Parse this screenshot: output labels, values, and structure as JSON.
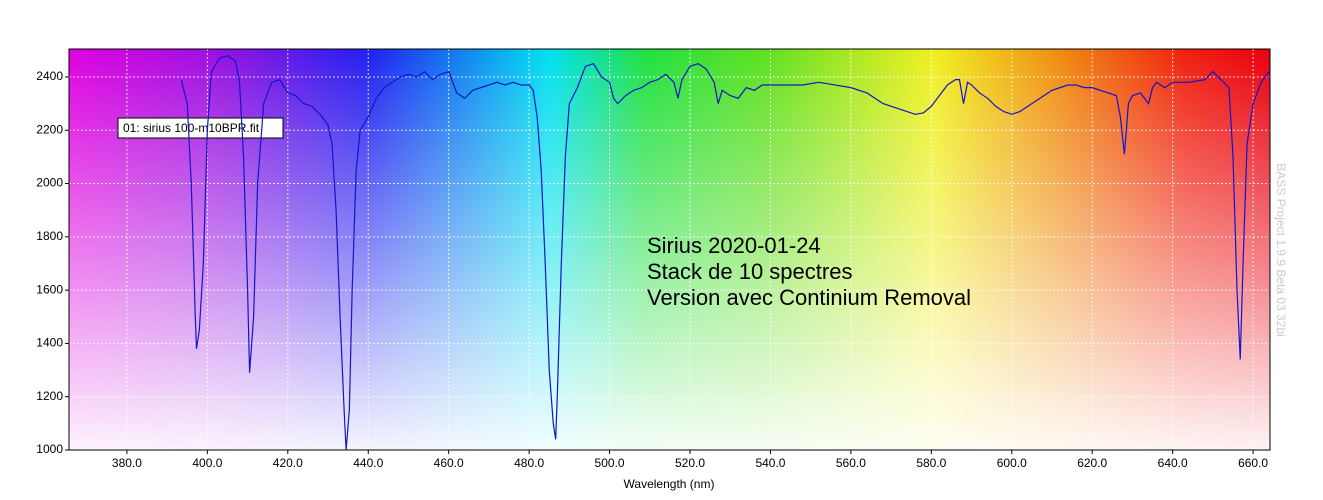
{
  "chart_data": {
    "type": "line",
    "xlabel": "Wavelength (nm)",
    "annotations": [
      "Sirius 2020-01-24",
      "Stack de 10 spectres",
      "Version avec Continium Removal"
    ],
    "watermark": "BASS Project 1.9.9 Beta 03 32bi",
    "grid": true,
    "xlim": [
      365.6,
      664.2
    ],
    "ylim": [
      1000,
      2505
    ],
    "xticks": [
      {
        "value": 380,
        "label": "380.0"
      },
      {
        "value": 400,
        "label": "400.0"
      },
      {
        "value": 420,
        "label": "420.0"
      },
      {
        "value": 440,
        "label": "440.0"
      },
      {
        "value": 460,
        "label": "460.0"
      },
      {
        "value": 480,
        "label": "480.0"
      },
      {
        "value": 500,
        "label": "500.0"
      },
      {
        "value": 520,
        "label": "520.0"
      },
      {
        "value": 540,
        "label": "540.0"
      },
      {
        "value": 560,
        "label": "560.0"
      },
      {
        "value": 580,
        "label": "580.0"
      },
      {
        "value": 600,
        "label": "600.0"
      },
      {
        "value": 620,
        "label": "620.0"
      },
      {
        "value": 640,
        "label": "640.0"
      },
      {
        "value": 660,
        "label": "660.0"
      }
    ],
    "yticks": [
      1000,
      1200,
      1400,
      1600,
      1800,
      2000,
      2200,
      2400
    ],
    "x": [
      393.5,
      395,
      396,
      397,
      397.3,
      398,
      399,
      400,
      401,
      403,
      405,
      407,
      408,
      409,
      410,
      410.5,
      411.5,
      412.5,
      414,
      416,
      418,
      420,
      422,
      424,
      426,
      428,
      430,
      431,
      432,
      433,
      434,
      434.5,
      435.3,
      436,
      437,
      438,
      440,
      442,
      444,
      446,
      448,
      450,
      452,
      454,
      456,
      458,
      460,
      462,
      464,
      466,
      468,
      470,
      472,
      474,
      476,
      478,
      480,
      481,
      482,
      483,
      484,
      485,
      486,
      486.6,
      487,
      488,
      489,
      490,
      492,
      494,
      496,
      498,
      500,
      501,
      502,
      504,
      506,
      508,
      510,
      512,
      514,
      516,
      517,
      518,
      520,
      522,
      524,
      526,
      527,
      528,
      530,
      532,
      534,
      536,
      538,
      540,
      544,
      548,
      552,
      556,
      560,
      564,
      568,
      572,
      576,
      578,
      580,
      582,
      584,
      586,
      587,
      588,
      589,
      590,
      592,
      594,
      596,
      598,
      600,
      602,
      604,
      606,
      608,
      610,
      612,
      614,
      616,
      618,
      620,
      622,
      624,
      626,
      627,
      628,
      629,
      630,
      632,
      634,
      635,
      636,
      638,
      640,
      644,
      648,
      650,
      652,
      654,
      655,
      656,
      656.8,
      657.5,
      658.5,
      660,
      662,
      664
    ],
    "series": [
      {
        "name": "01: sirius 100-m10BPR.fit",
        "color": "#1414c8",
        "values": [
          2390,
          2300,
          2000,
          1500,
          1380,
          1450,
          1700,
          2200,
          2420,
          2470,
          2480,
          2460,
          2380,
          2100,
          1600,
          1290,
          1500,
          2000,
          2300,
          2380,
          2390,
          2340,
          2330,
          2300,
          2290,
          2260,
          2220,
          2150,
          1900,
          1500,
          1150,
          1000,
          1150,
          1600,
          2050,
          2200,
          2250,
          2320,
          2360,
          2380,
          2400,
          2410,
          2400,
          2420,
          2390,
          2410,
          2420,
          2340,
          2320,
          2350,
          2360,
          2370,
          2380,
          2370,
          2380,
          2370,
          2370,
          2350,
          2250,
          2050,
          1700,
          1300,
          1100,
          1040,
          1200,
          1700,
          2100,
          2300,
          2360,
          2440,
          2450,
          2400,
          2380,
          2320,
          2300,
          2330,
          2350,
          2360,
          2380,
          2390,
          2410,
          2380,
          2320,
          2390,
          2440,
          2450,
          2430,
          2380,
          2300,
          2350,
          2330,
          2320,
          2360,
          2350,
          2370,
          2370,
          2370,
          2370,
          2380,
          2370,
          2360,
          2340,
          2300,
          2280,
          2260,
          2265,
          2290,
          2330,
          2370,
          2390,
          2390,
          2300,
          2380,
          2370,
          2340,
          2320,
          2290,
          2270,
          2260,
          2270,
          2290,
          2310,
          2330,
          2350,
          2360,
          2370,
          2370,
          2360,
          2360,
          2350,
          2340,
          2330,
          2250,
          2110,
          2300,
          2330,
          2340,
          2300,
          2360,
          2380,
          2360,
          2380,
          2380,
          2390,
          2420,
          2390,
          2360,
          2100,
          1600,
          1340,
          1700,
          2150,
          2300,
          2380,
          2420
        ]
      }
    ]
  }
}
